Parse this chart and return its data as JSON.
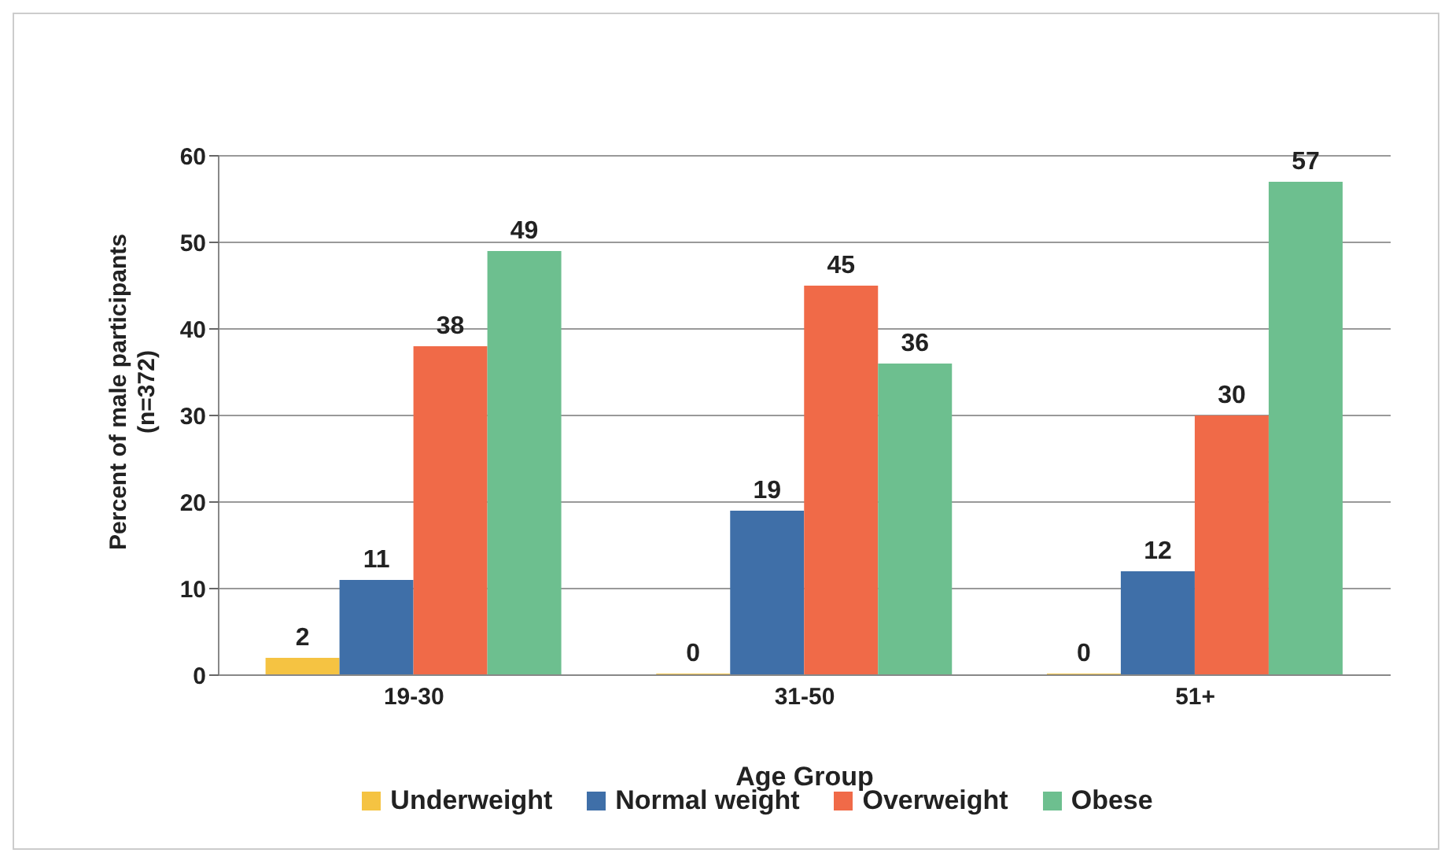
{
  "chart_data": {
    "type": "bar",
    "categories": [
      "19-30",
      "31-50",
      "51+"
    ],
    "series": [
      {
        "name": "Underweight",
        "color": "#f5c342",
        "values": [
          2,
          0,
          0
        ]
      },
      {
        "name": "Normal weight",
        "color": "#3f6fa8",
        "values": [
          11,
          19,
          12
        ]
      },
      {
        "name": "Overweight",
        "color": "#f06a48",
        "values": [
          38,
          45,
          30
        ]
      },
      {
        "name": "Obese",
        "color": "#6dbf8f",
        "values": [
          49,
          36,
          57
        ]
      }
    ],
    "xlabel": "Age Group",
    "ylabel": "Percent of male participants (n=372)",
    "ylim": [
      0,
      60
    ],
    "yticks": [
      0,
      10,
      20,
      30,
      40,
      50,
      60
    ],
    "grid": "y",
    "legend": "bottom",
    "data_labels": true
  }
}
